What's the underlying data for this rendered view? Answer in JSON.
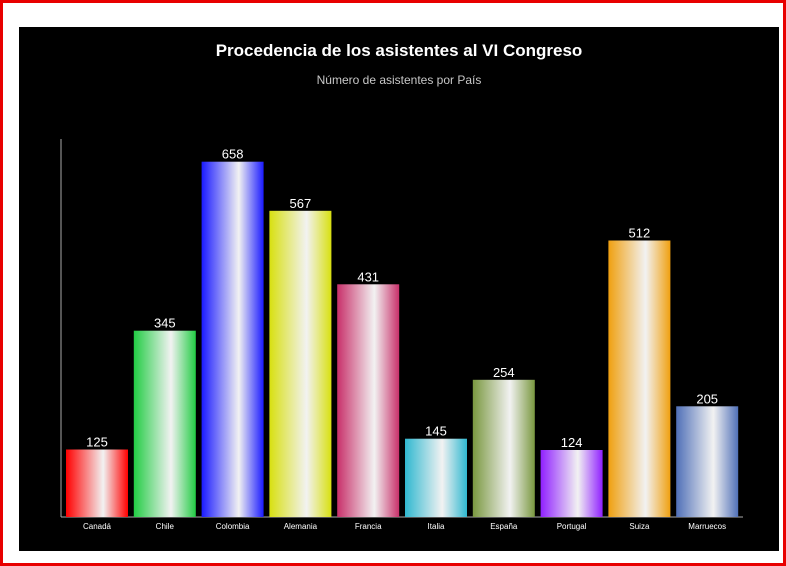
{
  "chart_data": {
    "type": "bar",
    "title": "Procedencia de los asistentes al VI Congreso",
    "subtitle": "Número de asistentes por País",
    "categories": [
      "Canadá",
      "Chile",
      "Colombia",
      "Alemania",
      "Francia",
      "Italia",
      "España",
      "Portugal",
      "Suiza",
      "Marruecos"
    ],
    "values": [
      125,
      345,
      658,
      567,
      431,
      145,
      254,
      124,
      512,
      205
    ],
    "colors": [
      "#ff0000",
      "#22cc44",
      "#1a1aff",
      "#d8e010",
      "#c8306a",
      "#30b8d0",
      "#7a9840",
      "#9020ff",
      "#f0a010",
      "#5070b8"
    ],
    "ylim": [
      0,
      700
    ],
    "grid": false,
    "legend": "none"
  }
}
